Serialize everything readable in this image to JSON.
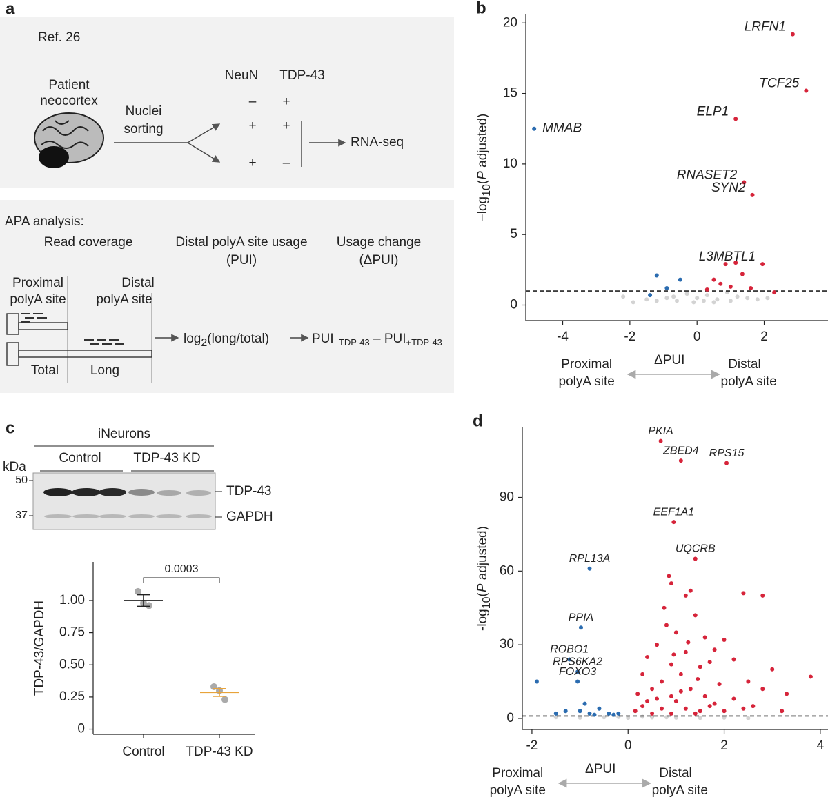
{
  "panel_a": {
    "label": "a",
    "ref": "Ref. 26",
    "patient": [
      "Patient",
      "neocortex"
    ],
    "sorting": [
      "Nuclei",
      "sorting"
    ],
    "columns": [
      "NeuN",
      "TDP-43"
    ],
    "rows": [
      [
        "–",
        "+"
      ],
      [
        "+",
        "+"
      ],
      [
        "+",
        "–"
      ]
    ],
    "output": "RNA-seq",
    "apa_title": "APA analysis:",
    "step1": "Read coverage",
    "step2": [
      "Distal polyA site usage",
      "(PUI)"
    ],
    "step3": [
      "Usage change",
      "(ΔPUI)"
    ],
    "proximal": [
      "Proximal",
      "polyA site"
    ],
    "distal": [
      "Distal",
      "polyA site"
    ],
    "total": "Total",
    "long": "Long",
    "formula": {
      "log": "log",
      "base": "2",
      "ratio": "(long/total)",
      "pui1": "PUI",
      "sub1": "–TDP-43",
      "pui2": " – PUI",
      "sub2": "+TDP-43"
    }
  },
  "blot": {
    "title": "iNeurons",
    "groups": [
      "Control",
      "TDP-43 KD"
    ],
    "unit": "kDa",
    "markers": [
      "50",
      "37"
    ],
    "bands": [
      "TDP-43",
      "GAPDH"
    ]
  },
  "chart_data": [
    {
      "panel": "b",
      "type": "scatter",
      "xlim": [
        -5.1,
        3.9
      ],
      "ylim": [
        -1.1,
        20.6
      ],
      "xticks": [
        -4,
        -2,
        0,
        2
      ],
      "yticks": [
        0,
        5,
        10,
        15,
        20
      ],
      "threshold": 1,
      "xlabel": "ΔPUI",
      "ylabel": [
        "−log",
        "10",
        "(",
        "P",
        " adjusted)"
      ],
      "left_note": [
        "Proximal",
        "polyA site"
      ],
      "right_note": [
        "Distal",
        "polyA site"
      ],
      "series": [
        {
          "color": "#d3d3d3",
          "x": [
            -2.2,
            -1.5,
            -1.2,
            -0.9,
            -0.6,
            -0.3,
            0,
            0.3,
            0.6,
            0.9,
            1.2,
            1.5,
            1.8,
            -0.1,
            0.2,
            0.5,
            -0.7,
            1.0,
            2.1,
            -1.9
          ],
          "values": [
            0.6,
            0.4,
            0.3,
            0.5,
            0.3,
            0.8,
            0.5,
            0.7,
            0.4,
            0.9,
            0.6,
            0.5,
            0.4,
            0.2,
            0.3,
            0.2,
            0.6,
            0.3,
            0.5,
            0.2
          ]
        },
        {
          "color": "#2b6cb0",
          "x": [
            -4.85,
            -1.2,
            -0.5,
            -0.9,
            -1.4
          ],
          "values": [
            12.5,
            2.1,
            1.8,
            1.2,
            0.7
          ],
          "labels": [
            "MMAB",
            null,
            null,
            null,
            null
          ]
        },
        {
          "color": "#d6243a",
          "x": [
            2.85,
            3.25,
            1.15,
            1.4,
            1.65,
            1.95,
            0.85,
            1.15,
            1.35,
            0.5,
            0.7,
            1.0,
            0.3,
            1.6,
            2.3
          ],
          "values": [
            19.2,
            15.2,
            13.2,
            8.7,
            7.8,
            2.9,
            2.9,
            3.0,
            2.2,
            1.8,
            1.5,
            1.3,
            1.1,
            1.2,
            0.9
          ],
          "labels": [
            "LRFN1",
            "TCF25",
            "ELP1",
            "RNASET2",
            "SYN2",
            "L3MBTL1",
            null,
            null,
            null,
            null,
            null,
            null,
            null,
            null,
            null
          ]
        }
      ]
    },
    {
      "panel": "c",
      "type": "dot",
      "categories": [
        "Control",
        "TDP-43 KD"
      ],
      "ylabel": "TDP-43/GAPDH",
      "ylim": [
        -0.04,
        1.3
      ],
      "yticks": [
        0,
        0.25,
        {
          "value": 0.5,
          "label": "0.50"
        },
        0.75,
        {
          "value": 1,
          "label": "1.00"
        }
      ],
      "means": [
        1.0,
        0.285
      ],
      "errors": [
        0.045,
        0.03
      ],
      "points": [
        [
          1.07,
          0.98,
          0.96
        ],
        [
          0.33,
          0.3,
          0.23
        ]
      ],
      "colors": [
        "#222222",
        "#e8a33a"
      ],
      "pvalue": "0.0003"
    },
    {
      "panel": "d",
      "type": "scatter",
      "xlim": [
        -2.2,
        4.16
      ],
      "ylim": [
        -4.5,
        118.5
      ],
      "xticks": [
        -2,
        0,
        2,
        4
      ],
      "yticks": [
        0,
        30,
        60,
        90
      ],
      "threshold": 1,
      "xlabel": "ΔPUI",
      "ylabel": [
        "-log",
        "10",
        "(",
        "P",
        " adjusted)"
      ],
      "left_note": [
        "Proximal",
        "polyA site"
      ],
      "right_note": [
        "Distal",
        "polyA site"
      ],
      "series": [
        {
          "color": "#d3d3d3",
          "x": [
            -1.5,
            -1.0,
            -0.5,
            0,
            0.5,
            1.0,
            1.5,
            2.0,
            2.5,
            -0.2,
            0.3,
            0.8
          ],
          "values": [
            0.5,
            0.3,
            0.5,
            0.2,
            0.4,
            0.3,
            0.2,
            0.3,
            0.1,
            0.6,
            0.7,
            0.5
          ]
        },
        {
          "color": "#2b6cb0",
          "x": [
            -0.8,
            -0.98,
            -1.22,
            -1.05,
            -1.05,
            -1.9,
            -0.8,
            -0.6,
            -0.9,
            -1.3,
            -0.4,
            -0.2,
            -0.7,
            -1.5,
            -1.0,
            -0.3
          ],
          "values": [
            61,
            37,
            24,
            19,
            15,
            15,
            2,
            4,
            6,
            3,
            2,
            2,
            1.5,
            2,
            3,
            1.5
          ],
          "labels": [
            "RPL13A",
            "PPIA",
            "ROBO1",
            "RPS6KA2",
            "FOXO3",
            null,
            null,
            null,
            null,
            null,
            null,
            null,
            null,
            null,
            null,
            null
          ]
        },
        {
          "color": "#d6243a",
          "x": [
            0.68,
            2.05,
            1.1,
            0.95,
            1.4,
            0.85,
            0.9,
            1.2,
            1.3,
            2.4,
            2.8,
            0.75,
            1.4,
            0.8,
            1.0,
            1.6,
            2.0,
            0.6,
            1.8,
            1.2,
            0.4,
            2.2,
            0.9,
            1.5,
            3.0,
            3.8,
            0.3,
            1.1,
            2.5,
            0.7,
            1.9,
            0.5,
            1.3,
            2.8,
            3.3,
            0.2,
            0.9,
            1.6,
            2.2,
            0.4,
            1.0,
            1.8,
            2.6,
            0.3,
            0.7,
            1.2,
            1.5,
            2.0,
            3.2,
            0.15,
            0.5,
            0.9,
            1.4,
            1.7,
            2.4,
            0.6,
            1.1,
            1.45,
            0.95,
            1.25,
            1.7
          ],
          "values": [
            113,
            104,
            105,
            80,
            65,
            58,
            55,
            50,
            52,
            51,
            50,
            45,
            42,
            38,
            35,
            33,
            32,
            30,
            28,
            27,
            25,
            24,
            22,
            21,
            20,
            17,
            18,
            18,
            15,
            15,
            14,
            12,
            12,
            12,
            10,
            10,
            9,
            9,
            8,
            7,
            7,
            6,
            5,
            5,
            4,
            4,
            3,
            3,
            3,
            3,
            2,
            2,
            2,
            5,
            4,
            8,
            11,
            16,
            26,
            31,
            23
          ],
          "labels": [
            "PKIA",
            "RPS15",
            "ZBED4",
            "EEF1A1",
            "UQCRB",
            null,
            null,
            null,
            null,
            null,
            null,
            null,
            null,
            null,
            null,
            null,
            null,
            null,
            null,
            null,
            null,
            null,
            null,
            null,
            null,
            null,
            null,
            null,
            null,
            null,
            null,
            null,
            null,
            null,
            null,
            null,
            null,
            null,
            null,
            null,
            null,
            null,
            null,
            null,
            null,
            null,
            null,
            null,
            null,
            null,
            null,
            null,
            null,
            null,
            null,
            null,
            null,
            null,
            null,
            null,
            null
          ]
        }
      ]
    }
  ]
}
